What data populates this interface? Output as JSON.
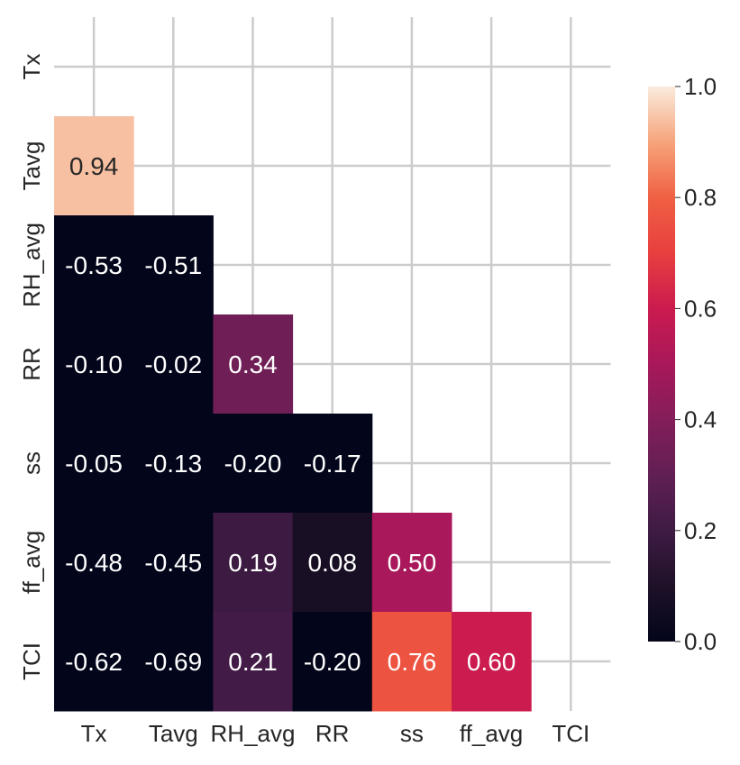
{
  "chart_data": {
    "type": "heatmap",
    "title": "",
    "xlabel": "",
    "ylabel": "",
    "variables": [
      "Tx",
      "Tavg",
      "RH_avg",
      "RR",
      "ss",
      "ff_avg",
      "TCI"
    ],
    "mask": "upper-triangle-including-diagonal",
    "grid": true,
    "colorbar": {
      "min": 0.0,
      "max": 1.0,
      "ticks": [
        "0.0",
        "0.2",
        "0.4",
        "0.6",
        "0.8",
        "1.0"
      ],
      "placement": "right",
      "colormap": "rocket"
    },
    "cells": [
      {
        "row": "Tavg",
        "col": "Tx",
        "value": 0.94,
        "label": "0.94"
      },
      {
        "row": "RH_avg",
        "col": "Tx",
        "value": -0.53,
        "label": "-0.53"
      },
      {
        "row": "RH_avg",
        "col": "Tavg",
        "value": -0.51,
        "label": "-0.51"
      },
      {
        "row": "RR",
        "col": "Tx",
        "value": -0.1,
        "label": "-0.10"
      },
      {
        "row": "RR",
        "col": "Tavg",
        "value": -0.02,
        "label": "-0.02"
      },
      {
        "row": "RR",
        "col": "RH_avg",
        "value": 0.34,
        "label": "0.34"
      },
      {
        "row": "ss",
        "col": "Tx",
        "value": -0.05,
        "label": "-0.05"
      },
      {
        "row": "ss",
        "col": "Tavg",
        "value": -0.13,
        "label": "-0.13"
      },
      {
        "row": "ss",
        "col": "RH_avg",
        "value": -0.2,
        "label": "-0.20"
      },
      {
        "row": "ss",
        "col": "RR",
        "value": -0.17,
        "label": "-0.17"
      },
      {
        "row": "ff_avg",
        "col": "Tx",
        "value": -0.48,
        "label": "-0.48"
      },
      {
        "row": "ff_avg",
        "col": "Tavg",
        "value": -0.45,
        "label": "-0.45"
      },
      {
        "row": "ff_avg",
        "col": "RH_avg",
        "value": 0.19,
        "label": "0.19"
      },
      {
        "row": "ff_avg",
        "col": "RR",
        "value": 0.08,
        "label": "0.08"
      },
      {
        "row": "ff_avg",
        "col": "ss",
        "value": 0.5,
        "label": "0.50"
      },
      {
        "row": "TCI",
        "col": "Tx",
        "value": -0.62,
        "label": "-0.62"
      },
      {
        "row": "TCI",
        "col": "Tavg",
        "value": -0.69,
        "label": "-0.69"
      },
      {
        "row": "TCI",
        "col": "RH_avg",
        "value": 0.21,
        "label": "0.21"
      },
      {
        "row": "TCI",
        "col": "RR",
        "value": -0.2,
        "label": "-0.20"
      },
      {
        "row": "TCI",
        "col": "ss",
        "value": 0.76,
        "label": "0.76"
      },
      {
        "row": "TCI",
        "col": "ff_avg",
        "value": 0.6,
        "label": "0.60"
      }
    ]
  }
}
